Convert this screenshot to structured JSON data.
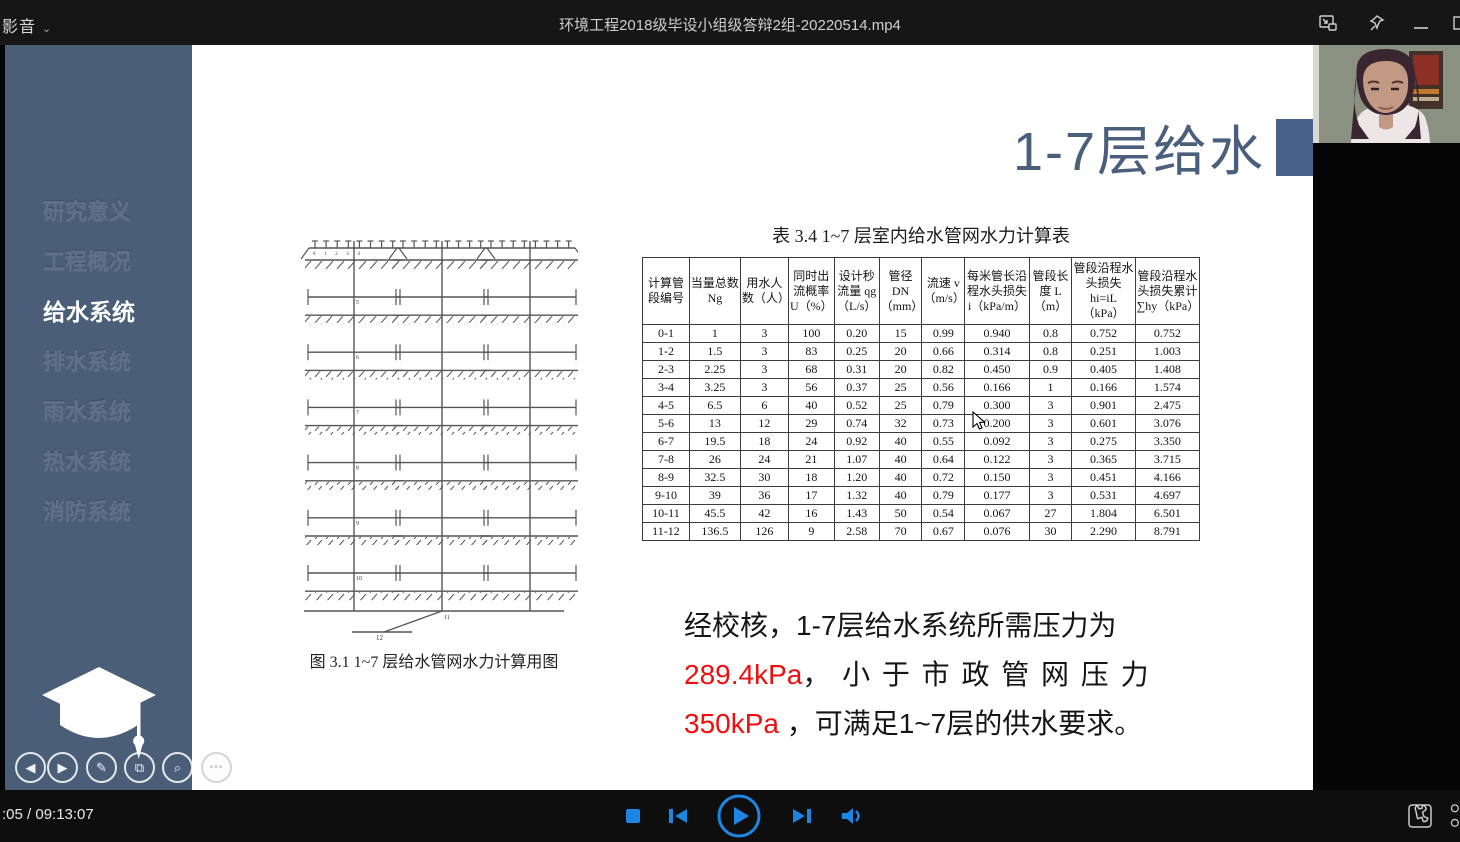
{
  "titlebar": {
    "app_menu": "影音",
    "video_title": "环境工程2018级毕设小组级答辩2组-20220514.mp4",
    "icons": [
      "mini-player",
      "pin",
      "minimize",
      "maximize"
    ]
  },
  "sidebar": {
    "items": [
      {
        "label": "研究意义",
        "active": false
      },
      {
        "label": "工程概况",
        "active": false
      },
      {
        "label": "给水系统",
        "active": true
      },
      {
        "label": "排水系统",
        "active": false
      },
      {
        "label": "雨水系统",
        "active": false
      },
      {
        "label": "热水系统",
        "active": false
      },
      {
        "label": "消防系统",
        "active": false
      }
    ],
    "logo": "graduation-cap"
  },
  "slide": {
    "title": "1-7层给水",
    "diagram_caption": "图 3.1 1~7 层给水管网水力计算用图",
    "diagram_top_labels": [
      "0",
      "1",
      "2",
      "3",
      "4"
    ],
    "diagram_branch_labels": [
      "5",
      "6",
      "7",
      "8",
      "9",
      "10"
    ],
    "diagram_bottom_labels": [
      "11",
      "12"
    ],
    "paragraph": {
      "line1": "经校核，1-7层给水系统所需压力为",
      "value1": "289.4kPa",
      "line2_rest": "， 小 于 市 政 管 网 压 力",
      "value2": "350kPa",
      "line3_rest": " ，可满足1~7层的供水要求。"
    },
    "toolbar": [
      "prev-slide",
      "next-slide",
      "pen",
      "slides",
      "zoom",
      "more"
    ]
  },
  "chart_data": {
    "type": "table",
    "title": "表 3.4 1~7 层室内给水管网水力计算表",
    "headers": [
      "计算管段编号",
      "当量总数 Ng",
      "用水人数（人）",
      "同时出流概率 U（%）",
      "设计秒流量 qg（L/s）",
      "管径 DN（mm）",
      "流速 v（m/s）",
      "每米管长沿程水头损失 i（kPa/m）",
      "管段长度 L（m）",
      "管段沿程水头损失 hi=iL（kPa）",
      "管段沿程水头损失累计∑hy（kPa）"
    ],
    "rows": [
      [
        "0-1",
        "1",
        "3",
        "100",
        "0.20",
        "15",
        "0.99",
        "0.940",
        "0.8",
        "0.752",
        "0.752"
      ],
      [
        "1-2",
        "1.5",
        "3",
        "83",
        "0.25",
        "20",
        "0.66",
        "0.314",
        "0.8",
        "0.251",
        "1.003"
      ],
      [
        "2-3",
        "2.25",
        "3",
        "68",
        "0.31",
        "20",
        "0.82",
        "0.450",
        "0.9",
        "0.405",
        "1.408"
      ],
      [
        "3-4",
        "3.25",
        "3",
        "56",
        "0.37",
        "25",
        "0.56",
        "0.166",
        "1",
        "0.166",
        "1.574"
      ],
      [
        "4-5",
        "6.5",
        "6",
        "40",
        "0.52",
        "25",
        "0.79",
        "0.300",
        "3",
        "0.901",
        "2.475"
      ],
      [
        "5-6",
        "13",
        "12",
        "29",
        "0.74",
        "32",
        "0.73",
        "0.200",
        "3",
        "0.601",
        "3.076"
      ],
      [
        "6-7",
        "19.5",
        "18",
        "24",
        "0.92",
        "40",
        "0.55",
        "0.092",
        "3",
        "0.275",
        "3.350"
      ],
      [
        "7-8",
        "26",
        "24",
        "21",
        "1.07",
        "40",
        "0.64",
        "0.122",
        "3",
        "0.365",
        "3.715"
      ],
      [
        "8-9",
        "32.5",
        "30",
        "18",
        "1.20",
        "40",
        "0.72",
        "0.150",
        "3",
        "0.451",
        "4.166"
      ],
      [
        "9-10",
        "39",
        "36",
        "17",
        "1.32",
        "40",
        "0.79",
        "0.177",
        "3",
        "0.531",
        "4.697"
      ],
      [
        "10-11",
        "45.5",
        "42",
        "16",
        "1.43",
        "50",
        "0.54",
        "0.067",
        "27",
        "1.804",
        "6.501"
      ],
      [
        "11-12",
        "136.5",
        "126",
        "9",
        "2.58",
        "70",
        "0.67",
        "0.076",
        "30",
        "2.290",
        "8.791"
      ]
    ]
  },
  "player": {
    "time_display": ":05 / 09:13:07",
    "controls": [
      "stop",
      "previous",
      "play",
      "next",
      "volume"
    ],
    "right_icons": [
      "tool-settings",
      "playlist"
    ]
  },
  "colors": {
    "sidebar": "#4a5e78",
    "accent_square": "#47618a",
    "slide_title": "#4a5f7c",
    "highlight_red": "#f20d0d",
    "player_blue": "#1d85e2",
    "titlebar_bg": "#161616",
    "controlbar_bg": "#0e0e0e"
  }
}
